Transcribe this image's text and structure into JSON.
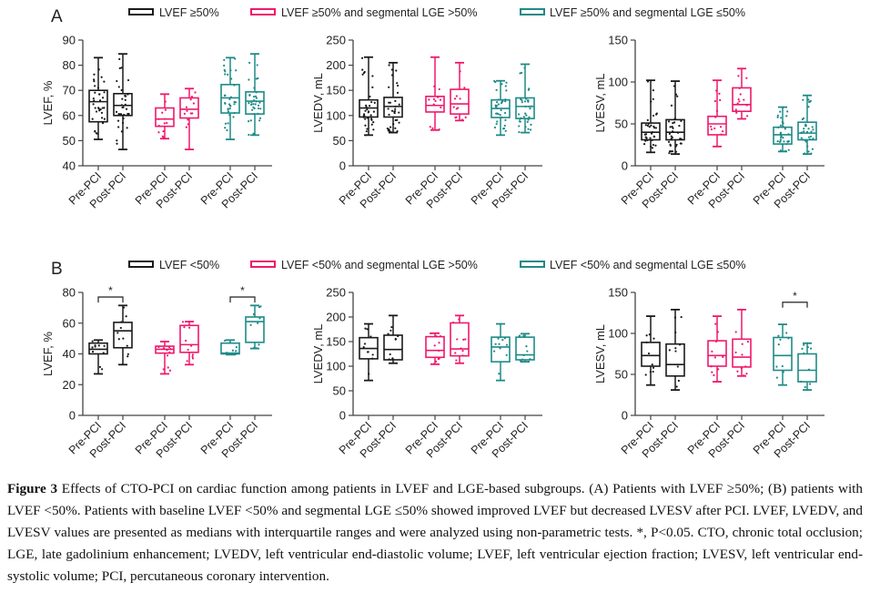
{
  "colors": {
    "lvef_main": "#1a1a1a",
    "lge_high": "#f0186a",
    "lge_low": "#1e8a87",
    "axis": "#444444"
  },
  "panels": [
    {
      "letter": "A",
      "legend": [
        "LVEF ≥50%",
        "LVEF ≥50% and segmental LGE >50%",
        "LVEF ≥50% and segmental LGE ≤50%"
      ]
    },
    {
      "letter": "B",
      "legend": [
        "LVEF <50%",
        "LVEF <50% and segmental LGE >50%",
        "LVEF <50% and segmental LGE ≤50%"
      ]
    }
  ],
  "x_categories": [
    "Pre-PCI",
    "Post-PCI",
    "Pre-PCI",
    "Post-PCI",
    "Pre-PCI",
    "Post-PCI"
  ],
  "chart_data": [
    {
      "type": "box",
      "panel": "A",
      "title": "",
      "ylabel": "LVEF, %",
      "ylim": [
        40,
        90
      ],
      "yticks": [
        40,
        50,
        60,
        70,
        80,
        90
      ],
      "categories": [
        "Pre-PCI",
        "Post-PCI",
        "Pre-PCI",
        "Post-PCI",
        "Pre-PCI",
        "Post-PCI"
      ],
      "groups": [
        "LVEF ≥50%",
        "LVEF ≥50% and segmental LGE >50%",
        "LVEF ≥50% and segmental LGE ≤50%"
      ],
      "boxes": [
        {
          "group": 0,
          "label": "Pre-PCI",
          "min": 50.5,
          "q1": 57.5,
          "median": 65.5,
          "q3": 70.0,
          "max": 83.0
        },
        {
          "group": 0,
          "label": "Post-PCI",
          "min": 46.5,
          "q1": 60.0,
          "median": 64.0,
          "q3": 68.7,
          "max": 84.5
        },
        {
          "group": 1,
          "label": "Pre-PCI",
          "min": 50.8,
          "q1": 55.7,
          "median": 58.6,
          "q3": 63.0,
          "max": 68.5
        },
        {
          "group": 1,
          "label": "Post-PCI",
          "min": 46.5,
          "q1": 59.0,
          "median": 62.5,
          "q3": 67.0,
          "max": 70.7
        },
        {
          "group": 2,
          "label": "Pre-PCI",
          "min": 50.5,
          "q1": 61.0,
          "median": 67.0,
          "q3": 72.3,
          "max": 83.0
        },
        {
          "group": 2,
          "label": "Post-PCI",
          "min": 52.2,
          "q1": 60.6,
          "median": 65.7,
          "q3": 69.4,
          "max": 84.5
        }
      ],
      "significance": []
    },
    {
      "type": "box",
      "panel": "A",
      "title": "",
      "ylabel": "LVEDV, mL",
      "ylim": [
        0,
        250
      ],
      "yticks": [
        0,
        50,
        100,
        150,
        200,
        250
      ],
      "categories": [
        "Pre-PCI",
        "Post-PCI",
        "Pre-PCI",
        "Post-PCI",
        "Pre-PCI",
        "Post-PCI"
      ],
      "groups": [
        "LVEF ≥50%",
        "LVEF ≥50% and segmental LGE >50%",
        "LVEF ≥50% and segmental LGE ≤50%"
      ],
      "boxes": [
        {
          "group": 0,
          "label": "Pre-PCI",
          "min": 61,
          "q1": 97,
          "median": 115,
          "q3": 131,
          "max": 216
        },
        {
          "group": 0,
          "label": "Post-PCI",
          "min": 66,
          "q1": 97,
          "median": 118,
          "q3": 136,
          "max": 205
        },
        {
          "group": 1,
          "label": "Pre-PCI",
          "min": 71,
          "q1": 107,
          "median": 120,
          "q3": 138,
          "max": 216
        },
        {
          "group": 1,
          "label": "Post-PCI",
          "min": 90,
          "q1": 103,
          "median": 123,
          "q3": 152,
          "max": 205
        },
        {
          "group": 2,
          "label": "Pre-PCI",
          "min": 61,
          "q1": 96,
          "median": 114,
          "q3": 131,
          "max": 169
        },
        {
          "group": 2,
          "label": "Post-PCI",
          "min": 66,
          "q1": 94,
          "median": 118,
          "q3": 135,
          "max": 202
        }
      ],
      "significance": []
    },
    {
      "type": "box",
      "panel": "A",
      "title": "",
      "ylabel": "LVESV, mL",
      "ylim": [
        0,
        150
      ],
      "yticks": [
        0,
        50,
        100,
        150
      ],
      "categories": [
        "Pre-PCI",
        "Post-PCI",
        "Pre-PCI",
        "Post-PCI",
        "Pre-PCI",
        "Post-PCI"
      ],
      "groups": [
        "LVEF ≥50%",
        "LVEF ≥50% and segmental LGE >50%",
        "LVEF ≥50% and segmental LGE ≤50%"
      ],
      "boxes": [
        {
          "group": 0,
          "label": "Pre-PCI",
          "min": 16,
          "q1": 31,
          "median": 40,
          "q3": 51,
          "max": 102
        },
        {
          "group": 0,
          "label": "Post-PCI",
          "min": 14,
          "q1": 31,
          "median": 40,
          "q3": 55,
          "max": 101
        },
        {
          "group": 1,
          "label": "Pre-PCI",
          "min": 23,
          "q1": 37,
          "median": 50,
          "q3": 59,
          "max": 102
        },
        {
          "group": 1,
          "label": "Post-PCI",
          "min": 56,
          "q1": 65,
          "median": 73,
          "q3": 93,
          "max": 116
        },
        {
          "group": 2,
          "label": "Pre-PCI",
          "min": 17,
          "q1": 26,
          "median": 37,
          "q3": 46,
          "max": 70
        },
        {
          "group": 2,
          "label": "Post-PCI",
          "min": 14,
          "q1": 31,
          "median": 39,
          "q3": 52,
          "max": 84
        }
      ],
      "significance": []
    },
    {
      "type": "box",
      "panel": "B",
      "title": "",
      "ylabel": "LVEF, %",
      "ylim": [
        0,
        80
      ],
      "yticks": [
        0,
        20,
        40,
        60,
        80
      ],
      "categories": [
        "Pre-PCI",
        "Post-PCI",
        "Pre-PCI",
        "Post-PCI",
        "Pre-PCI",
        "Post-PCI"
      ],
      "groups": [
        "LVEF <50%",
        "LVEF <50% and segmental LGE >50%",
        "LVEF <50% and segmental LGE ≤50%"
      ],
      "boxes": [
        {
          "group": 0,
          "label": "Pre-PCI",
          "min": 27.0,
          "q1": 40.0,
          "median": 43.0,
          "q3": 47.0,
          "max": 49.0
        },
        {
          "group": 0,
          "label": "Post-PCI",
          "min": 33.0,
          "q1": 44.0,
          "median": 55.0,
          "q3": 60.5,
          "max": 71.5
        },
        {
          "group": 1,
          "label": "Pre-PCI",
          "min": 27.0,
          "q1": 40.5,
          "median": 43.0,
          "q3": 45.0,
          "max": 48.0
        },
        {
          "group": 1,
          "label": "Post-PCI",
          "min": 33.0,
          "q1": 41.0,
          "median": 46.0,
          "q3": 58.5,
          "max": 61.0
        },
        {
          "group": 2,
          "label": "Pre-PCI",
          "min": 39.5,
          "q1": 40.0,
          "median": 40.5,
          "q3": 47.0,
          "max": 49.0
        },
        {
          "group": 2,
          "label": "Post-PCI",
          "min": 43.5,
          "q1": 47.5,
          "median": 61.0,
          "q3": 64.0,
          "max": 71.5
        }
      ],
      "significance": [
        {
          "from": 0,
          "to": 1,
          "y": 77,
          "label": "*"
        },
        {
          "from": 4,
          "to": 5,
          "y": 77,
          "label": "*"
        }
      ]
    },
    {
      "type": "box",
      "panel": "B",
      "title": "",
      "ylabel": "LVEDV, mL",
      "ylim": [
        0,
        250
      ],
      "yticks": [
        0,
        50,
        100,
        150,
        200,
        250
      ],
      "categories": [
        "Pre-PCI",
        "Post-PCI",
        "Pre-PCI",
        "Post-PCI",
        "Pre-PCI",
        "Post-PCI"
      ],
      "groups": [
        "LVEF <50%",
        "LVEF <50% and segmental LGE >50%",
        "LVEF <50% and segmental LGE ≤50%"
      ],
      "boxes": [
        {
          "group": 0,
          "label": "Pre-PCI",
          "min": 71,
          "q1": 115,
          "median": 136,
          "q3": 158,
          "max": 186
        },
        {
          "group": 0,
          "label": "Post-PCI",
          "min": 106,
          "q1": 113,
          "median": 134,
          "q3": 163,
          "max": 203
        },
        {
          "group": 1,
          "label": "Pre-PCI",
          "min": 104,
          "q1": 118,
          "median": 132,
          "q3": 160,
          "max": 167
        },
        {
          "group": 1,
          "label": "Post-PCI",
          "min": 106,
          "q1": 121,
          "median": 135,
          "q3": 188,
          "max": 203
        },
        {
          "group": 2,
          "label": "Pre-PCI",
          "min": 71,
          "q1": 109,
          "median": 139,
          "q3": 159,
          "max": 186
        },
        {
          "group": 2,
          "label": "Post-PCI",
          "min": 109,
          "q1": 113,
          "median": 123,
          "q3": 159,
          "max": 166
        }
      ],
      "significance": []
    },
    {
      "type": "box",
      "panel": "B",
      "title": "",
      "ylabel": "LVESV, mL",
      "ylim": [
        0,
        150
      ],
      "yticks": [
        0,
        50,
        100,
        150
      ],
      "categories": [
        "Pre-PCI",
        "Post-PCI",
        "Pre-PCI",
        "Post-PCI",
        "Pre-PCI",
        "Post-PCI"
      ],
      "groups": [
        "LVEF <50%",
        "LVEF <50% and segmental LGE >50%",
        "LVEF <50% and segmental LGE ≤50%"
      ],
      "boxes": [
        {
          "group": 0,
          "label": "Pre-PCI",
          "min": 37,
          "q1": 60,
          "median": 73,
          "q3": 89,
          "max": 121
        },
        {
          "group": 0,
          "label": "Post-PCI",
          "min": 31,
          "q1": 48,
          "median": 62,
          "q3": 87,
          "max": 129
        },
        {
          "group": 1,
          "label": "Pre-PCI",
          "min": 41,
          "q1": 60,
          "median": 73,
          "q3": 91,
          "max": 121
        },
        {
          "group": 1,
          "label": "Post-PCI",
          "min": 48,
          "q1": 59,
          "median": 71,
          "q3": 93,
          "max": 129
        },
        {
          "group": 2,
          "label": "Pre-PCI",
          "min": 37,
          "q1": 55,
          "median": 73,
          "q3": 95,
          "max": 111
        },
        {
          "group": 2,
          "label": "Post-PCI",
          "min": 31,
          "q1": 41,
          "median": 55,
          "q3": 75,
          "max": 88
        }
      ],
      "significance": [
        {
          "from": 4,
          "to": 5,
          "y": 138,
          "label": "*"
        }
      ]
    }
  ],
  "caption": {
    "label": "Figure 3",
    "text": " Effects of CTO-PCI on cardiac function among patients in LVEF and LGE-based subgroups. (A) Patients with LVEF ≥50%; (B) patients with LVEF <50%. Patients with baseline LVEF <50% and segmental LGE ≤50% showed improved LVEF but decreased LVESV after PCI. LVEF, LVEDV, and LVESV values are presented as medians with interquartile ranges and were analyzed using non-parametric tests. *, P<0.05. CTO, chronic total occlusion; LGE, late gadolinium enhancement; LVEDV, left ventricular end-diastolic volume; LVEF, left ventricular ejection fraction; LVESV, left ventricular end-systolic volume; PCI, percutaneous coronary intervention."
  }
}
